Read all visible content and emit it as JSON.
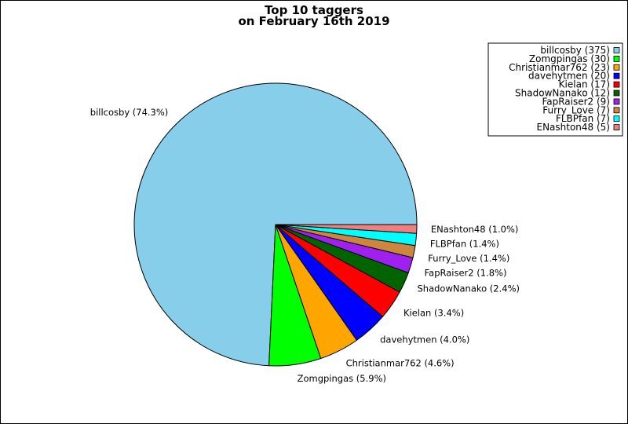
{
  "chart_data": {
    "type": "pie",
    "title": [
      "Top 10 taggers",
      "on February 16th 2019"
    ],
    "legend_position": "top-right",
    "slices": [
      {
        "name": "billcosby",
        "value": 375,
        "percent_label": "74.3%",
        "legend_label": "billcosby (375)",
        "slice_label": "billcosby (74.3%)",
        "color": "#87CEEB"
      },
      {
        "name": "Zomgpingas",
        "value": 30,
        "percent_label": "5.9%",
        "legend_label": "Zomgpingas (30)",
        "slice_label": "Zomgpingas (5.9%)",
        "color": "#00FF00"
      },
      {
        "name": "Christianmar762",
        "value": 23,
        "percent_label": "4.6%",
        "legend_label": "Christianmar762 (23)",
        "slice_label": "Christianmar762 (4.6%)",
        "color": "#FFA500"
      },
      {
        "name": "davehytmen",
        "value": 20,
        "percent_label": "4.0%",
        "legend_label": "davehytmen (20)",
        "slice_label": "davehytmen (4.0%)",
        "color": "#0000FF"
      },
      {
        "name": "Kielan",
        "value": 17,
        "percent_label": "3.4%",
        "legend_label": "Kielan (17)",
        "slice_label": "Kielan (3.4%)",
        "color": "#FF0000"
      },
      {
        "name": "ShadowNanako",
        "value": 12,
        "percent_label": "2.4%",
        "legend_label": "ShadowNanako (12)",
        "slice_label": "ShadowNanako (2.4%)",
        "color": "#006400"
      },
      {
        "name": "FapRaiser2",
        "value": 9,
        "percent_label": "1.8%",
        "legend_label": "FapRaiser2 (9)",
        "slice_label": "FapRaiser2 (1.8%)",
        "color": "#A020F0"
      },
      {
        "name": "Furry_Love",
        "value": 7,
        "percent_label": "1.4%",
        "legend_label": "Furry_Love (7)",
        "slice_label": "Furry_Love (1.4%)",
        "color": "#CD853F"
      },
      {
        "name": "FLBPfan",
        "value": 7,
        "percent_label": "1.4%",
        "legend_label": "FLBPfan (7)",
        "slice_label": "FLBPfan (1.4%)",
        "color": "#00FFFF"
      },
      {
        "name": "ENashton48",
        "value": 5,
        "percent_label": "1.0%",
        "legend_label": "ENashton48 (5)",
        "slice_label": "ENashton48 (1.0%)",
        "color": "#F08080"
      }
    ]
  }
}
